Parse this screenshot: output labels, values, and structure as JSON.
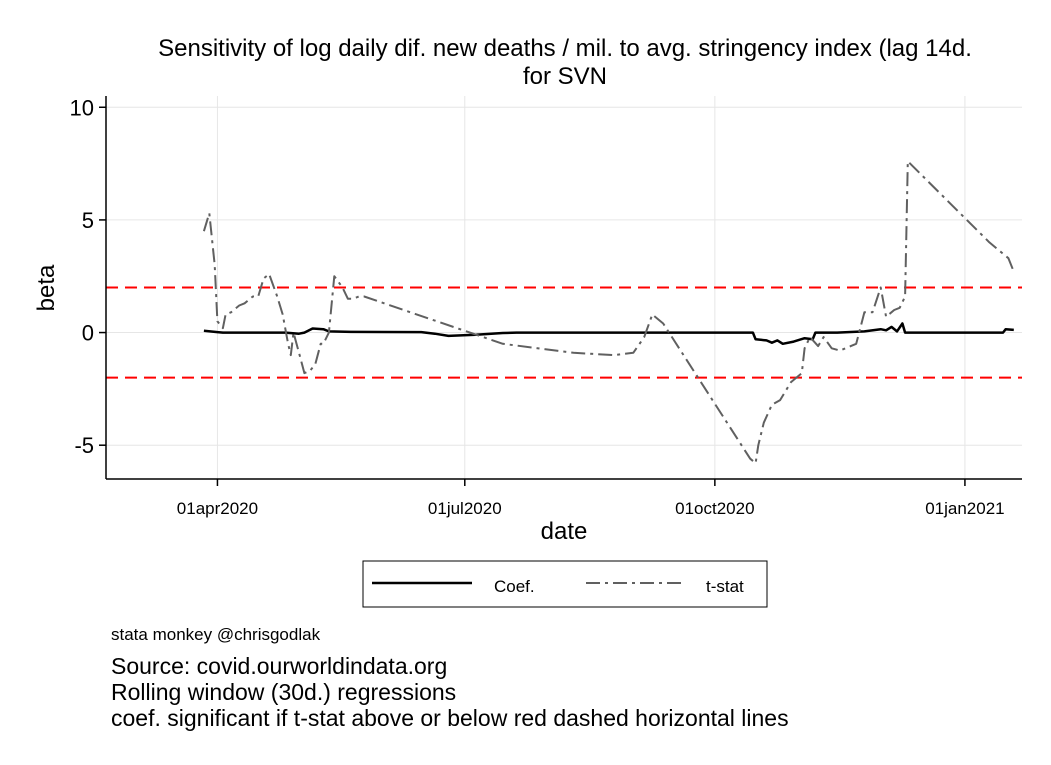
{
  "chart_data": {
    "type": "line",
    "title_lines": [
      "Sensitivity of log daily dif. new deaths / mil. to avg. stringency index (lag 14d.",
      "for SVN"
    ],
    "xlabel": "date",
    "ylabel": "beta",
    "x_axis": {
      "type": "date",
      "range": [
        "2020-02-20",
        "2021-01-22"
      ],
      "ticks": [
        {
          "date": "2020-04-01",
          "label": "01apr2020"
        },
        {
          "date": "2020-07-01",
          "label": "01jul2020"
        },
        {
          "date": "2020-10-01",
          "label": "01oct2020"
        },
        {
          "date": "2021-01-01",
          "label": "01jan2021"
        }
      ]
    },
    "y_axis": {
      "range": [
        -6.5,
        10.5
      ],
      "ticks": [
        10,
        5,
        0,
        -5
      ],
      "tick_labels": [
        "10",
        "5",
        "0",
        "-5"
      ]
    },
    "grid": true,
    "reference_lines": [
      {
        "y": 2,
        "color": "#ff0000",
        "style": "dashed"
      },
      {
        "y": -2,
        "color": "#ff0000",
        "style": "dashed"
      }
    ],
    "legend": {
      "placement": "bottom",
      "boxed": true
    },
    "series": [
      {
        "name": "Coef.",
        "color": "#000000",
        "style": "solid",
        "points": [
          [
            "2020-03-27",
            0.08
          ],
          [
            "2020-04-01",
            0.02
          ],
          [
            "2020-04-03",
            0.0
          ],
          [
            "2020-04-15",
            0.0
          ],
          [
            "2020-04-26",
            0.0
          ],
          [
            "2020-05-01",
            -0.05
          ],
          [
            "2020-05-03",
            0.0
          ],
          [
            "2020-05-06",
            0.18
          ],
          [
            "2020-05-10",
            0.15
          ],
          [
            "2020-05-12",
            0.05
          ],
          [
            "2020-05-20",
            0.03
          ],
          [
            "2020-06-15",
            0.02
          ],
          [
            "2020-06-20",
            -0.05
          ],
          [
            "2020-06-25",
            -0.15
          ],
          [
            "2020-07-05",
            -0.1
          ],
          [
            "2020-07-15",
            -0.02
          ],
          [
            "2020-07-20",
            0.0
          ],
          [
            "2020-08-15",
            0.0
          ],
          [
            "2020-09-10",
            0.0
          ],
          [
            "2020-10-01",
            0.0
          ],
          [
            "2020-10-15",
            0.0
          ],
          [
            "2020-10-16",
            -0.3
          ],
          [
            "2020-10-20",
            -0.35
          ],
          [
            "2020-10-22",
            -0.45
          ],
          [
            "2020-10-24",
            -0.35
          ],
          [
            "2020-10-26",
            -0.5
          ],
          [
            "2020-10-30",
            -0.4
          ],
          [
            "2020-11-03",
            -0.25
          ],
          [
            "2020-11-06",
            -0.3
          ],
          [
            "2020-11-07",
            0.0
          ],
          [
            "2020-11-15",
            0.0
          ],
          [
            "2020-11-25",
            0.05
          ],
          [
            "2020-12-01",
            0.15
          ],
          [
            "2020-12-03",
            0.1
          ],
          [
            "2020-12-05",
            0.25
          ],
          [
            "2020-12-07",
            0.05
          ],
          [
            "2020-12-09",
            0.4
          ],
          [
            "2020-12-10",
            0.0
          ],
          [
            "2020-12-20",
            0.0
          ],
          [
            "2021-01-01",
            0.0
          ],
          [
            "2021-01-10",
            0.0
          ],
          [
            "2021-01-15",
            0.0
          ],
          [
            "2021-01-16",
            0.15
          ],
          [
            "2021-01-19",
            0.12
          ]
        ]
      },
      {
        "name": "t-stat",
        "color": "#606060",
        "style": "dash-dot",
        "points": [
          [
            "2020-03-27",
            4.5
          ],
          [
            "2020-03-29",
            5.3
          ],
          [
            "2020-03-31",
            3.0
          ],
          [
            "2020-04-01",
            0.5
          ],
          [
            "2020-04-03",
            0.2
          ],
          [
            "2020-04-04",
            0.8
          ],
          [
            "2020-04-06",
            0.9
          ],
          [
            "2020-04-09",
            1.2
          ],
          [
            "2020-04-11",
            1.3
          ],
          [
            "2020-04-14",
            1.6
          ],
          [
            "2020-04-16",
            1.6
          ],
          [
            "2020-04-18",
            2.4
          ],
          [
            "2020-04-20",
            2.6
          ],
          [
            "2020-04-23",
            1.6
          ],
          [
            "2020-04-25",
            0.8
          ],
          [
            "2020-04-27",
            -0.5
          ],
          [
            "2020-04-28",
            -1.0
          ],
          [
            "2020-04-29",
            0.0
          ],
          [
            "2020-05-01",
            -0.9
          ],
          [
            "2020-05-03",
            -1.8
          ],
          [
            "2020-05-05",
            -1.7
          ],
          [
            "2020-05-07",
            -1.4
          ],
          [
            "2020-05-09",
            -0.5
          ],
          [
            "2020-05-10",
            -0.5
          ],
          [
            "2020-05-12",
            0.0
          ],
          [
            "2020-05-14",
            2.5
          ],
          [
            "2020-05-17",
            2.0
          ],
          [
            "2020-05-19",
            1.5
          ],
          [
            "2020-05-21",
            1.5
          ],
          [
            "2020-05-23",
            1.6
          ],
          [
            "2020-05-25",
            1.6
          ],
          [
            "2020-07-15",
            -0.5
          ],
          [
            "2020-08-10",
            -0.9
          ],
          [
            "2020-08-25",
            -1.0
          ],
          [
            "2020-09-01",
            -0.9
          ],
          [
            "2020-09-05",
            -0.2
          ],
          [
            "2020-09-08",
            0.8
          ],
          [
            "2020-09-12",
            0.4
          ],
          [
            "2020-10-14",
            -5.6
          ],
          [
            "2020-10-16",
            -5.8
          ],
          [
            "2020-10-17",
            -5.0
          ],
          [
            "2020-10-19",
            -4.0
          ],
          [
            "2020-10-22",
            -3.2
          ],
          [
            "2020-10-25",
            -3.0
          ],
          [
            "2020-10-29",
            -2.2
          ],
          [
            "2020-11-02",
            -1.8
          ],
          [
            "2020-11-03",
            -0.7
          ],
          [
            "2020-11-05",
            -0.2
          ],
          [
            "2020-11-08",
            -0.6
          ],
          [
            "2020-11-10",
            -0.2
          ],
          [
            "2020-11-13",
            -0.7
          ],
          [
            "2020-11-16",
            -0.8
          ],
          [
            "2020-11-20",
            -0.6
          ],
          [
            "2020-11-22",
            -0.5
          ],
          [
            "2020-11-25",
            0.9
          ],
          [
            "2020-11-28",
            0.9
          ],
          [
            "2020-12-01",
            2.0
          ],
          [
            "2020-12-03",
            0.7
          ],
          [
            "2020-12-06",
            1.0
          ],
          [
            "2020-12-08",
            1.1
          ],
          [
            "2020-12-10",
            1.6
          ],
          [
            "2020-12-11",
            7.6
          ],
          [
            "2021-01-10",
            4.0
          ],
          [
            "2021-01-17",
            3.3
          ],
          [
            "2021-01-19",
            2.7
          ]
        ]
      }
    ]
  },
  "notes": {
    "credit": "stata monkey @chrisgodlak",
    "lines": [
      "Source: covid.ourworldindata.org",
      "Rolling window (30d.) regressions",
      "coef. significant if t-stat above or below red dashed horizontal lines"
    ]
  }
}
